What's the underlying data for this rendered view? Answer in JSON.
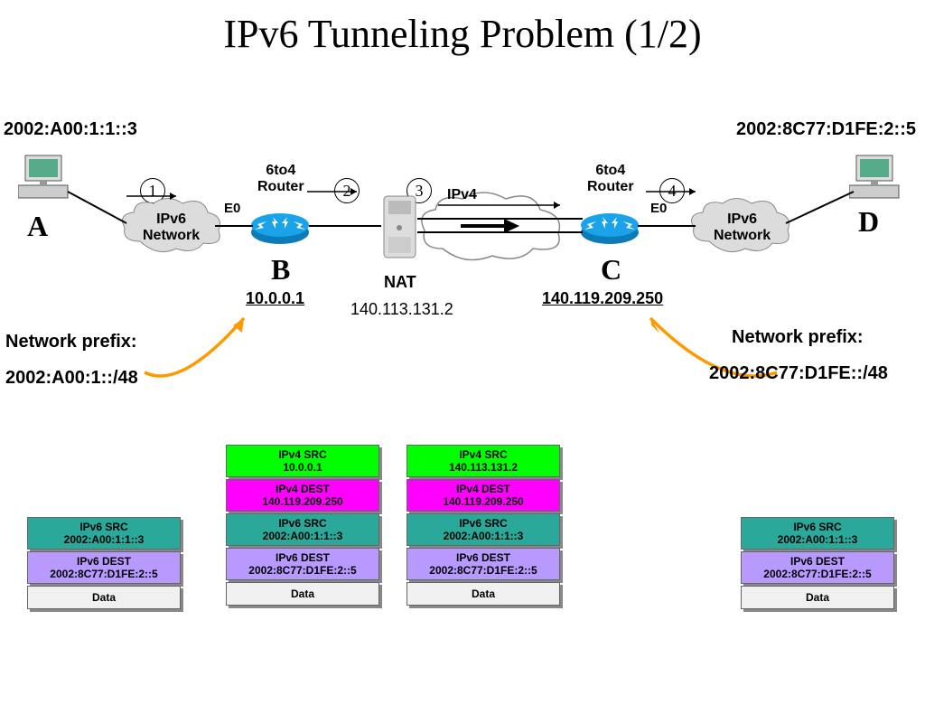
{
  "title": "IPv6 Tunneling Problem (1/2)",
  "hostA": {
    "label": "A",
    "addr": "2002:A00:1:1::3"
  },
  "hostD": {
    "label": "D",
    "addr": "2002:8C77:D1FE:2::5"
  },
  "net_left_label": "IPv6\nNetwork",
  "net_right_label": "IPv6\nNetwork",
  "ipv4_cloud_label": "IPv4",
  "routerB": {
    "top": "6to4\nRouter",
    "letter": "B",
    "ip": "10.0.0.1",
    "iface": "E0"
  },
  "routerC": {
    "top": "6to4\nRouter",
    "letter": "C",
    "ip": "140.119.209.250",
    "iface": "E0"
  },
  "nat": {
    "label": "NAT",
    "ip": "140.113.131.2"
  },
  "steps": [
    "1",
    "2",
    "3",
    "4"
  ],
  "prefix_left": {
    "title": "Network prefix:",
    "value": "2002:A00:1::/48"
  },
  "prefix_right": {
    "title": "Network prefix:",
    "value": "2002:8C77:D1FE::/48"
  },
  "colors": {
    "ipv4src": "#00ff00",
    "ipv4dst": "#ff00ff",
    "ipv6src": "#2aa89a",
    "ipv6dst": "#b89aff",
    "data": "#f0f0f0",
    "cloud": "#dcdcdc",
    "router": "#1aa3e8",
    "arrow": "#ff9900"
  },
  "packets": {
    "p1": [
      {
        "t": "IPv6 SRC",
        "v": "2002:A00:1:1::3",
        "c": "ipv6src"
      },
      {
        "t": "IPv6 DEST",
        "v": "2002:8C77:D1FE:2::5",
        "c": "ipv6dst"
      },
      {
        "t": "Data",
        "v": "",
        "c": "data"
      }
    ],
    "p2": [
      {
        "t": "IPv4 SRC",
        "v": "10.0.0.1",
        "c": "ipv4src"
      },
      {
        "t": "IPv4 DEST",
        "v": "140.119.209.250",
        "c": "ipv4dst"
      },
      {
        "t": "IPv6 SRC",
        "v": "2002:A00:1:1::3",
        "c": "ipv6src"
      },
      {
        "t": "IPv6 DEST",
        "v": "2002:8C77:D1FE:2::5",
        "c": "ipv6dst"
      },
      {
        "t": "Data",
        "v": "",
        "c": "data"
      }
    ],
    "p3": [
      {
        "t": "IPv4 SRC",
        "v": "140.113.131.2",
        "c": "ipv4src"
      },
      {
        "t": "IPv4 DEST",
        "v": "140.119.209.250",
        "c": "ipv4dst"
      },
      {
        "t": "IPv6 SRC",
        "v": "2002:A00:1:1::3",
        "c": "ipv6src"
      },
      {
        "t": "IPv6 DEST",
        "v": "2002:8C77:D1FE:2::5",
        "c": "ipv6dst"
      },
      {
        "t": "Data",
        "v": "",
        "c": "data"
      }
    ],
    "p4": [
      {
        "t": "IPv6 SRC",
        "v": "2002:A00:1:1::3",
        "c": "ipv6src"
      },
      {
        "t": "IPv6 DEST",
        "v": "2002:8C77:D1FE:2::5",
        "c": "ipv6dst"
      },
      {
        "t": "Data",
        "v": "",
        "c": "data"
      }
    ]
  }
}
